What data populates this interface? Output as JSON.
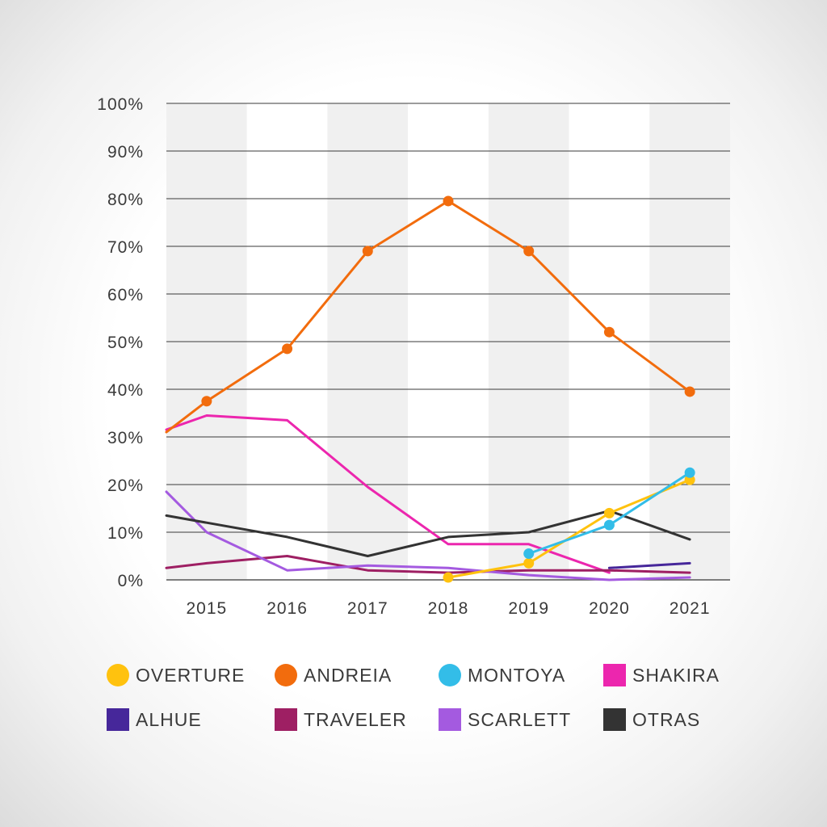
{
  "chart_data": {
    "type": "line",
    "x": [
      "2015",
      "2016",
      "2017",
      "2018",
      "2019",
      "2020",
      "2021"
    ],
    "y_ticks": [
      "0%",
      "10%",
      "20%",
      "30%",
      "40%",
      "50%",
      "60%",
      "70%",
      "80%",
      "90%",
      "100%"
    ],
    "ylim": [
      0,
      100
    ],
    "grid": true,
    "legend_position": "bottom",
    "series": [
      {
        "name": "OVERTURE",
        "color": "#FFC20E",
        "marker": "circle",
        "legend_shape": "circle",
        "values": [
          null,
          null,
          null,
          0.5,
          3.5,
          14,
          21
        ]
      },
      {
        "name": "ANDREIA",
        "color": "#F26C0D",
        "marker": "circle",
        "legend_shape": "circle",
        "start": 31,
        "values": [
          37.5,
          48.5,
          69,
          79.5,
          69,
          52,
          39.5
        ]
      },
      {
        "name": "MONTOYA",
        "color": "#33BDE8",
        "marker": "circle",
        "legend_shape": "circle",
        "values": [
          null,
          null,
          null,
          null,
          5.5,
          11.5,
          22.5
        ]
      },
      {
        "name": "SHAKIRA",
        "color": "#EC26AE",
        "marker": "none",
        "legend_shape": "square",
        "start": 31.5,
        "values": [
          34.5,
          33.5,
          19.5,
          7.5,
          7.5,
          1.5,
          null
        ]
      },
      {
        "name": "ALHUE",
        "color": "#46279A",
        "marker": "none",
        "legend_shape": "square",
        "values": [
          null,
          null,
          null,
          null,
          null,
          2.5,
          3.5
        ]
      },
      {
        "name": "TRAVELER",
        "color": "#9E1F63",
        "marker": "none",
        "legend_shape": "square",
        "start": 2.5,
        "values": [
          3.5,
          5,
          2,
          1.5,
          2,
          2,
          1.5
        ]
      },
      {
        "name": "SCARLETT",
        "color": "#A45AE0",
        "marker": "none",
        "legend_shape": "square",
        "start": 18.5,
        "values": [
          10,
          2,
          3,
          2.5,
          1,
          0,
          0.5
        ]
      },
      {
        "name": "OTRAS",
        "color": "#333333",
        "marker": "none",
        "legend_shape": "square",
        "start": 13.5,
        "values": [
          12,
          9,
          5,
          9,
          10,
          14.5,
          8.5
        ]
      }
    ]
  }
}
